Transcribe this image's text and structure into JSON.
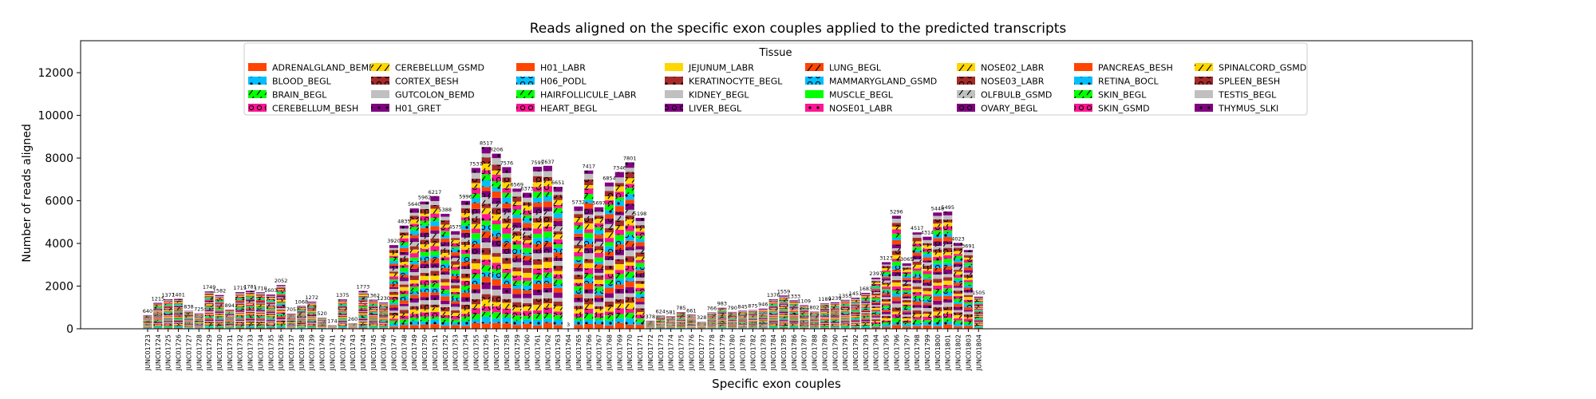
{
  "chart_data": {
    "type": "bar",
    "stacked": true,
    "title": "Reads aligned on the specific exon couples applied to the predicted transcripts",
    "xlabel": "Specific exon couples",
    "ylabel": "Number of reads aligned",
    "ylim": [
      0,
      13500
    ],
    "yticks": [
      0,
      2000,
      4000,
      6000,
      8000,
      10000,
      12000
    ],
    "legend_title": "Tissue",
    "legend_position": "top-center",
    "grid": false,
    "categories": [
      "JUNC01723",
      "JUNC01724",
      "JUNC01725",
      "JUNC01726",
      "JUNC01727",
      "JUNC01728",
      "JUNC01729",
      "JUNC01730",
      "JUNC01731",
      "JUNC01732",
      "JUNC01733",
      "JUNC01734",
      "JUNC01735",
      "JUNC01736",
      "JUNC01737",
      "JUNC01738",
      "JUNC01739",
      "JUNC01740",
      "JUNC01741",
      "JUNC01742",
      "JUNC01743",
      "JUNC01744",
      "JUNC01745",
      "JUNC01746",
      "JUNC01747",
      "JUNC01748",
      "JUNC01749",
      "JUNC01750",
      "JUNC01751",
      "JUNC01752",
      "JUNC01753",
      "JUNC01754",
      "JUNC01755",
      "JUNC01756",
      "JUNC01757",
      "JUNC01758",
      "JUNC01759",
      "JUNC01760",
      "JUNC01761",
      "JUNC01762",
      "JUNC01763",
      "JUNC01764",
      "JUNC01765",
      "JUNC01766",
      "JUNC01767",
      "JUNC01768",
      "JUNC01769",
      "JUNC01770",
      "JUNC01771",
      "JUNC01772",
      "JUNC01773",
      "JUNC01774",
      "JUNC01775",
      "JUNC01776",
      "JUNC01777",
      "JUNC01778",
      "JUNC01779",
      "JUNC01780",
      "JUNC01781",
      "JUNC01782",
      "JUNC01783",
      "JUNC01784",
      "JUNC01785",
      "JUNC01786",
      "JUNC01787",
      "JUNC01788",
      "JUNC01789",
      "JUNC01790",
      "JUNC01791",
      "JUNC01792",
      "JUNC01793",
      "JUNC01794",
      "JUNC01795",
      "JUNC01796",
      "JUNC01797",
      "JUNC01798",
      "JUNC01799",
      "JUNC01800",
      "JUNC01801",
      "JUNC01802",
      "JUNC01803",
      "JUNC01804"
    ],
    "totals": [
      640,
      1215,
      1377,
      1401,
      838,
      725,
      1749,
      1582,
      894,
      1715,
      1781,
      1710,
      1603,
      2052,
      705,
      1068,
      1272,
      520,
      174,
      1375,
      260,
      1773,
      1362,
      1230,
      3920,
      4835,
      5640,
      5962,
      6217,
      5388,
      4575,
      5996,
      7537,
      8517,
      8206,
      7576,
      6569,
      6373,
      7595,
      7637,
      6651,
      3,
      5732,
      7417,
      5697,
      6854,
      7346,
      7801,
      5198,
      378,
      624,
      581,
      785,
      661,
      328,
      766,
      983,
      790,
      845,
      875,
      946,
      1376,
      1559,
      1333,
      1109,
      802,
      1189,
      1239,
      1355,
      1451,
      1683,
      2397,
      3123,
      5296,
      3065,
      4517,
      4314,
      5448,
      5495,
      4023,
      3691,
      1505
    ],
    "series": [
      {
        "name": "ADRENALGLAND_BEMD",
        "color": "#ff4500",
        "hatch": ""
      },
      {
        "name": "BLOOD_BEGL",
        "color": "#00bfff",
        "hatch": "dot"
      },
      {
        "name": "BRAIN_BEGL",
        "color": "#00ff00",
        "hatch": "slash"
      },
      {
        "name": "CEREBELLUM_BESH",
        "color": "#ff1493",
        "hatch": "ring"
      },
      {
        "name": "CEREBELLUM_GSMD",
        "color": "#ffd700",
        "hatch": "slash"
      },
      {
        "name": "CORTEX_BESH",
        "color": "#a52a2a",
        "hatch": "ring"
      },
      {
        "name": "GUTCOLON_BEMD",
        "color": "#c0c0c0",
        "hatch": ""
      },
      {
        "name": "H01_GRET",
        "color": "#800080",
        "hatch": "dot"
      },
      {
        "name": "H01_LABR",
        "color": "#ff4500",
        "hatch": ""
      },
      {
        "name": "H06_PODL",
        "color": "#00bfff",
        "hatch": "ring"
      },
      {
        "name": "HAIRFOLLICULE_LABR",
        "color": "#00ff00",
        "hatch": "slash"
      },
      {
        "name": "HEART_BEGL",
        "color": "#ff1493",
        "hatch": "ring"
      },
      {
        "name": "JEJUNUM_LABR",
        "color": "#ffd700",
        "hatch": ""
      },
      {
        "name": "KERATINOCYTE_BEGL",
        "color": "#a52a2a",
        "hatch": "dot"
      },
      {
        "name": "KIDNEY_BEGL",
        "color": "#c0c0c0",
        "hatch": ""
      },
      {
        "name": "LIVER_BEGL",
        "color": "#800080",
        "hatch": "ring"
      },
      {
        "name": "LUNG_BEGL",
        "color": "#ff4500",
        "hatch": "slash"
      },
      {
        "name": "MAMMARYGLAND_GSMD",
        "color": "#00bfff",
        "hatch": "ring"
      },
      {
        "name": "MUSCLE_BEGL",
        "color": "#00ff00",
        "hatch": ""
      },
      {
        "name": "NOSE01_LABR",
        "color": "#ff1493",
        "hatch": "dot"
      },
      {
        "name": "NOSE02_LABR",
        "color": "#ffd700",
        "hatch": "slash"
      },
      {
        "name": "NOSE03_LABR",
        "color": "#a52a2a",
        "hatch": "ring"
      },
      {
        "name": "OLFBULB_GSMD",
        "color": "#c0c0c0",
        "hatch": "slash"
      },
      {
        "name": "OVARY_BEGL",
        "color": "#800080",
        "hatch": "ring"
      },
      {
        "name": "PANCREAS_BESH",
        "color": "#ff4500",
        "hatch": ""
      },
      {
        "name": "RETINA_BOCL",
        "color": "#00bfff",
        "hatch": "dot"
      },
      {
        "name": "SKIN_BEGL",
        "color": "#00ff00",
        "hatch": "slash"
      },
      {
        "name": "SKIN_GSMD",
        "color": "#ff1493",
        "hatch": "ring"
      },
      {
        "name": "SPINALCORD_GSMD",
        "color": "#ffd700",
        "hatch": "slash"
      },
      {
        "name": "SPLEEN_BESH",
        "color": "#a52a2a",
        "hatch": "ring"
      },
      {
        "name": "TESTIS_BEGL",
        "color": "#c0c0c0",
        "hatch": ""
      },
      {
        "name": "THYMUS_SLKI",
        "color": "#800080",
        "hatch": "dot"
      }
    ]
  }
}
